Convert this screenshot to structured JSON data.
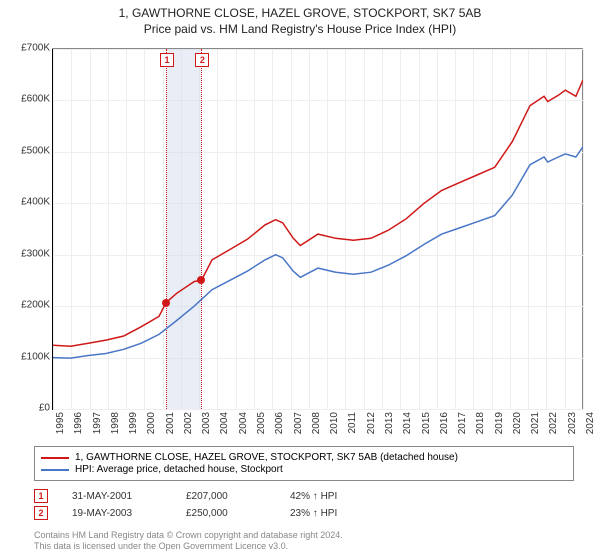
{
  "title": {
    "main": "1, GAWTHORNE CLOSE, HAZEL GROVE, STOCKPORT, SK7 5AB",
    "sub": "Price paid vs. HM Land Registry's House Price Index (HPI)"
  },
  "chart": {
    "type": "line",
    "background_color": "#ffffff",
    "grid_color": "#eeeeee",
    "axis_color": "#000000",
    "x": {
      "label_fontsize": 10,
      "ticks": [
        1995,
        1996,
        1997,
        1998,
        1999,
        2000,
        2001,
        2002,
        2003,
        2004,
        2004,
        2005,
        2006,
        2007,
        2008,
        2010,
        2011,
        2012,
        2013,
        2014,
        2015,
        2016,
        2017,
        2018,
        2019,
        2020,
        2021,
        2022,
        2023,
        2024
      ],
      "min": 1995,
      "max": 2025
    },
    "y": {
      "label_fontsize": 10,
      "ticks": [
        0,
        100,
        200,
        300,
        400,
        500,
        600,
        700
      ],
      "tick_prefix": "£",
      "tick_suffix": "K",
      "min": 0,
      "max": 700
    },
    "marker_band": {
      "start_year": 2001.4,
      "end_year": 2003.4,
      "color": "#cbd7eb"
    },
    "series": [
      {
        "id": "property",
        "label": "1, GAWTHORNE CLOSE, HAZEL GROVE, STOCKPORT, SK7 5AB (detached house)",
        "color": "#d01818",
        "line_width": 1.5,
        "points": [
          [
            1995,
            124
          ],
          [
            1996,
            122
          ],
          [
            1997,
            128
          ],
          [
            1998,
            134
          ],
          [
            1999,
            142
          ],
          [
            2000,
            160
          ],
          [
            2001,
            180
          ],
          [
            2001.4,
            207
          ],
          [
            2002,
            225
          ],
          [
            2003,
            248
          ],
          [
            2003.4,
            250
          ],
          [
            2004,
            290
          ],
          [
            2005,
            310
          ],
          [
            2006,
            330
          ],
          [
            2007,
            358
          ],
          [
            2007.6,
            368
          ],
          [
            2008,
            362
          ],
          [
            2008.6,
            332
          ],
          [
            2009,
            318
          ],
          [
            2010,
            340
          ],
          [
            2011,
            332
          ],
          [
            2012,
            328
          ],
          [
            2013,
            332
          ],
          [
            2014,
            348
          ],
          [
            2015,
            370
          ],
          [
            2016,
            400
          ],
          [
            2017,
            425
          ],
          [
            2018,
            440
          ],
          [
            2019,
            455
          ],
          [
            2020,
            470
          ],
          [
            2021,
            520
          ],
          [
            2022,
            590
          ],
          [
            2022.8,
            608
          ],
          [
            2023,
            598
          ],
          [
            2023.6,
            610
          ],
          [
            2024,
            620
          ],
          [
            2024.6,
            608
          ],
          [
            2025,
            640
          ]
        ]
      },
      {
        "id": "hpi",
        "label": "HPI: Average price, detached house, Stockport",
        "color": "#4a76c7",
        "line_width": 1.5,
        "points": [
          [
            1995,
            100
          ],
          [
            1996,
            99
          ],
          [
            1997,
            104
          ],
          [
            1998,
            108
          ],
          [
            1999,
            116
          ],
          [
            2000,
            128
          ],
          [
            2001,
            145
          ],
          [
            2002,
            172
          ],
          [
            2003,
            200
          ],
          [
            2004,
            232
          ],
          [
            2005,
            250
          ],
          [
            2006,
            268
          ],
          [
            2007,
            290
          ],
          [
            2007.6,
            300
          ],
          [
            2008,
            294
          ],
          [
            2008.6,
            268
          ],
          [
            2009,
            256
          ],
          [
            2010,
            274
          ],
          [
            2011,
            266
          ],
          [
            2012,
            262
          ],
          [
            2013,
            266
          ],
          [
            2014,
            280
          ],
          [
            2015,
            298
          ],
          [
            2016,
            320
          ],
          [
            2017,
            340
          ],
          [
            2018,
            352
          ],
          [
            2019,
            364
          ],
          [
            2020,
            376
          ],
          [
            2021,
            416
          ],
          [
            2022,
            475
          ],
          [
            2022.8,
            490
          ],
          [
            2023,
            480
          ],
          [
            2023.6,
            490
          ],
          [
            2024,
            496
          ],
          [
            2024.6,
            490
          ],
          [
            2025,
            510
          ]
        ]
      }
    ],
    "sale_markers": [
      {
        "num": "1",
        "year": 2001.4,
        "value": 207,
        "date": "31-MAY-2001",
        "price": "£207,000",
        "delta": "42% ↑ HPI",
        "color": "#d01818"
      },
      {
        "num": "2",
        "year": 2003.4,
        "value": 250,
        "date": "19-MAY-2003",
        "price": "£250,000",
        "delta": "23% ↑ HPI",
        "color": "#d01818"
      }
    ]
  },
  "footer": {
    "line1": "Contains HM Land Registry data © Crown copyright and database right 2024.",
    "line2": "This data is licensed under the Open Government Licence v3.0."
  }
}
